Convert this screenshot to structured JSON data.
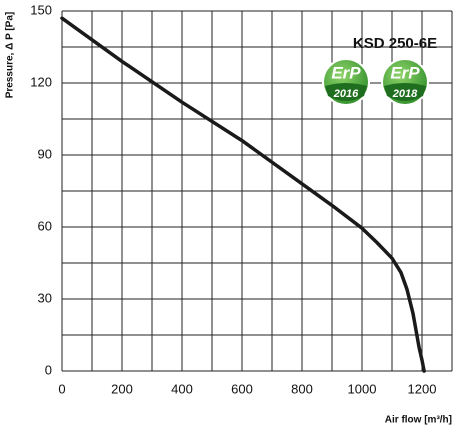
{
  "chart_data": {
    "type": "line",
    "title": "KSD 250-6E",
    "y_label": "Pressure, Δ P [Pa]",
    "x_label": "Air flow [m³/h]",
    "x": [
      0,
      200,
      400,
      600,
      800,
      900,
      1000,
      1050,
      1100,
      1130,
      1150,
      1170,
      1180,
      1190,
      1200,
      1207
    ],
    "series": [
      {
        "name": "KSD 250-6E",
        "color": "#1a1a1a",
        "values": [
          147,
          129,
          112,
          96,
          78,
          69,
          59.5,
          53.5,
          47,
          41,
          34,
          24,
          17,
          10,
          4.5,
          0
        ]
      }
    ],
    "xlim": [
      0,
      1300
    ],
    "ylim": [
      0,
      150
    ],
    "xticks": [
      0,
      200,
      400,
      600,
      800,
      1000,
      1200
    ],
    "yticks": [
      0,
      30,
      60,
      90,
      120,
      150
    ],
    "xgrid": [
      0,
      100,
      200,
      300,
      400,
      500,
      600,
      700,
      800,
      900,
      1000,
      1100,
      1200,
      1300
    ],
    "ygrid": [
      0,
      15,
      30,
      45,
      60,
      75,
      90,
      105,
      120,
      135,
      150
    ],
    "grid": true,
    "badges": [
      {
        "label": "ErP",
        "year": "2016"
      },
      {
        "label": "ErP",
        "year": "2018"
      }
    ]
  }
}
